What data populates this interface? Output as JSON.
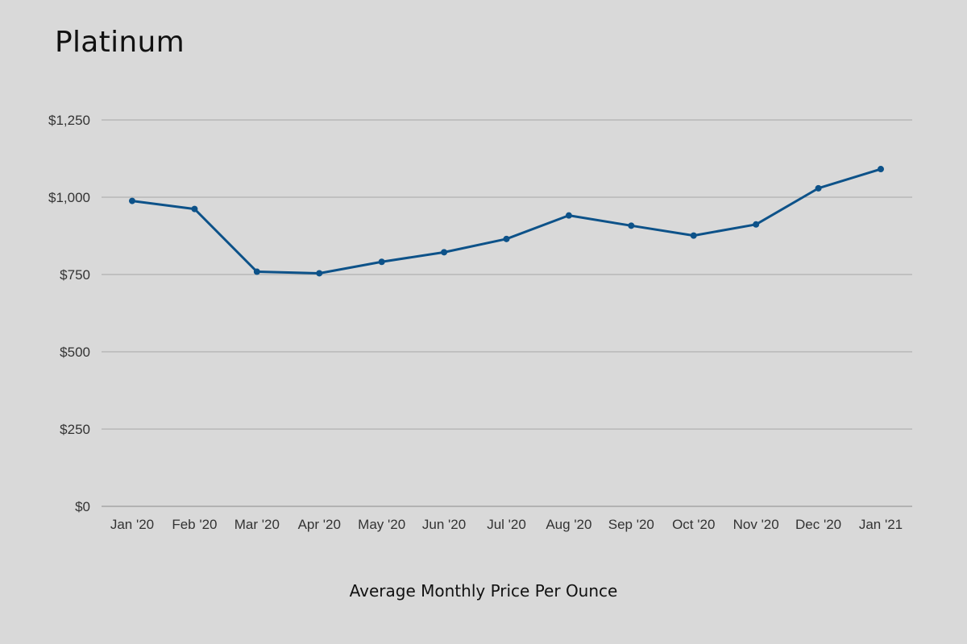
{
  "chart_data": {
    "type": "line",
    "title": "Platinum",
    "xlabel": "Average Monthly Price Per Ounce",
    "ylabel": "",
    "categories": [
      "Jan '20",
      "Feb '20",
      "Mar '20",
      "Apr '20",
      "May '20",
      "Jun '20",
      "Jul '20",
      "Aug '20",
      "Sep '20",
      "Oct '20",
      "Nov '20",
      "Dec '20",
      "Jan '21"
    ],
    "series": [
      {
        "values": [
          988,
          962,
          759,
          754,
          791,
          822,
          865,
          941,
          908,
          876,
          912,
          1029,
          1091
        ]
      }
    ],
    "ylim": [
      0,
      1250
    ],
    "yticks": [
      0,
      250,
      500,
      750,
      1000,
      1250
    ],
    "ytick_labels": [
      "$0",
      "$250",
      "$500",
      "$750",
      "$1,000",
      "$1,250"
    ],
    "grid": true,
    "line_color": "#0d5289"
  }
}
